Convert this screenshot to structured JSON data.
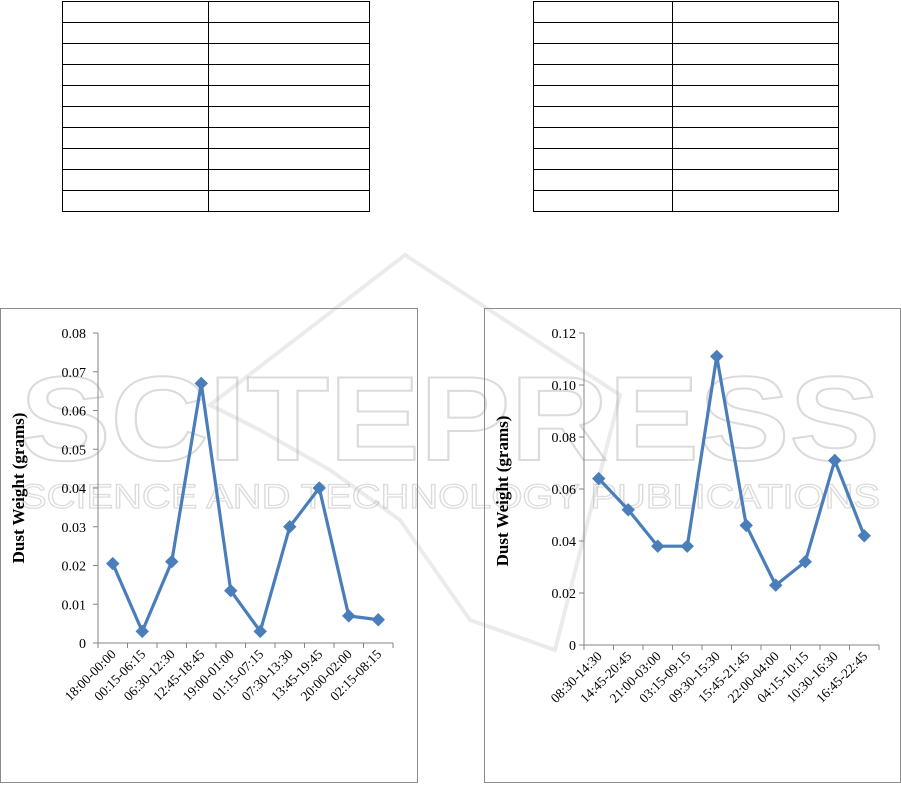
{
  "watermark": {
    "title": "SCITEPRESS",
    "subtitle": "SCIENCE AND TECHNOLOGY PUBLICATIONS"
  },
  "tables": {
    "left_rows": 10,
    "right_rows": 10
  },
  "chart_data": [
    {
      "type": "line",
      "ylabel": "Dust Weight (grams)",
      "xlabel": "",
      "categories": [
        "18:00-00:00",
        "00:15-06:15",
        "06:30-12:30",
        "12:45-18:45",
        "19:00-01:00",
        "01:15-07:15",
        "07:30-13:30",
        "13:45-19:45",
        "20:00-02:00",
        "02:15-08:15"
      ],
      "values": [
        0.0205,
        0.003,
        0.021,
        0.067,
        0.0135,
        0.003,
        0.03,
        0.04,
        0.007,
        0.006
      ],
      "ylim": [
        0,
        0.08
      ],
      "yticks": [
        "0",
        "0.01",
        "0.02",
        "0.03",
        "0.04",
        "0.05",
        "0.06",
        "0.07",
        "0.08"
      ],
      "grid": false,
      "color": "#4a7ebb"
    },
    {
      "type": "line",
      "ylabel": "Dust Weight (grams)",
      "xlabel": "",
      "categories": [
        "08:30-14:30",
        "14:45-20:45",
        "21:00-03:00",
        "03:15-09:15",
        "09:30-15:30",
        "15:45-21:45",
        "22:00-04:00",
        "04:15-10:15",
        "10:30-16:30",
        "16:45-22:45"
      ],
      "values": [
        0.064,
        0.052,
        0.038,
        0.038,
        0.111,
        0.046,
        0.023,
        0.032,
        0.071,
        0.042
      ],
      "ylim": [
        0,
        0.12
      ],
      "yticks": [
        "0",
        "0.02",
        "0.04",
        "0.06",
        "0.08",
        "0.10",
        "0.12"
      ],
      "grid": false,
      "color": "#4a7ebb"
    }
  ]
}
